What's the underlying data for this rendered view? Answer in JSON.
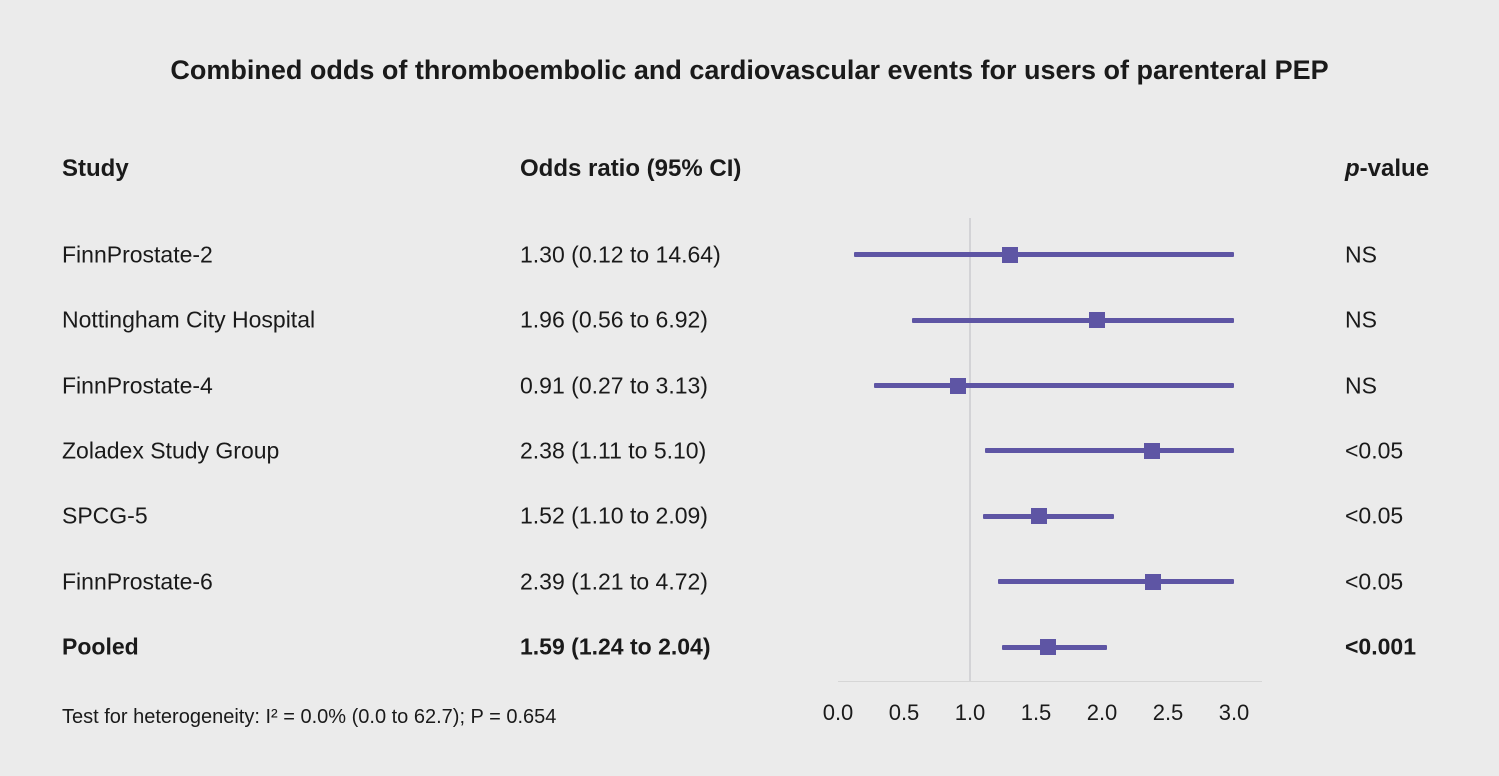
{
  "title": "Combined odds of thromboembolic and cardiovascular events for users of parenteral PEP",
  "columns": {
    "study": "Study",
    "odds_ratio": "Odds ratio (95% CI)",
    "pvalue_italic": "p",
    "pvalue_rest": "-value"
  },
  "footer": {
    "heterogeneity": "Test for heterogeneity: I² = 0.0% (0.0 to 62.7); P = 0.654"
  },
  "colors": {
    "background": "#ebebeb",
    "marker": "#5e55a4",
    "reference_line": "#d3d3d6",
    "text": "#1a1a1a"
  },
  "chart_data": {
    "type": "forest",
    "title": "Combined odds of thromboembolic and cardiovascular events for users of parenteral PEP",
    "xlim": [
      0,
      3
    ],
    "reference_line": 1.0,
    "axis_ticks": [
      "0.0",
      "0.5",
      "1.0",
      "1.5",
      "2.0",
      "2.5",
      "3.0"
    ],
    "rows": [
      {
        "study": "FinnProstate-2",
        "or_text": "1.30 (0.12 to 14.64)",
        "est": 1.3,
        "lo": 0.12,
        "hi": 14.64,
        "p": "NS",
        "bold": false
      },
      {
        "study": "Nottingham City Hospital",
        "or_text": "1.96 (0.56 to 6.92)",
        "est": 1.96,
        "lo": 0.56,
        "hi": 6.92,
        "p": "NS",
        "bold": false
      },
      {
        "study": "FinnProstate-4",
        "or_text": "0.91 (0.27 to 3.13)",
        "est": 0.91,
        "lo": 0.27,
        "hi": 3.13,
        "p": "NS",
        "bold": false
      },
      {
        "study": "Zoladex Study Group",
        "or_text": "2.38 (1.11 to 5.10)",
        "est": 2.38,
        "lo": 1.11,
        "hi": 5.1,
        "p": "<0.05",
        "bold": false
      },
      {
        "study": "SPCG-5",
        "or_text": "1.52 (1.10 to 2.09)",
        "est": 1.52,
        "lo": 1.1,
        "hi": 2.09,
        "p": "<0.05",
        "bold": false
      },
      {
        "study": "FinnProstate-6",
        "or_text": "2.39 (1.21 to 4.72)",
        "est": 2.39,
        "lo": 1.21,
        "hi": 4.72,
        "p": "<0.05",
        "bold": false
      },
      {
        "study": "Pooled",
        "or_text": "1.59 (1.24 to 2.04)",
        "est": 1.59,
        "lo": 1.24,
        "hi": 2.04,
        "p": "<0.001",
        "bold": true
      }
    ]
  }
}
